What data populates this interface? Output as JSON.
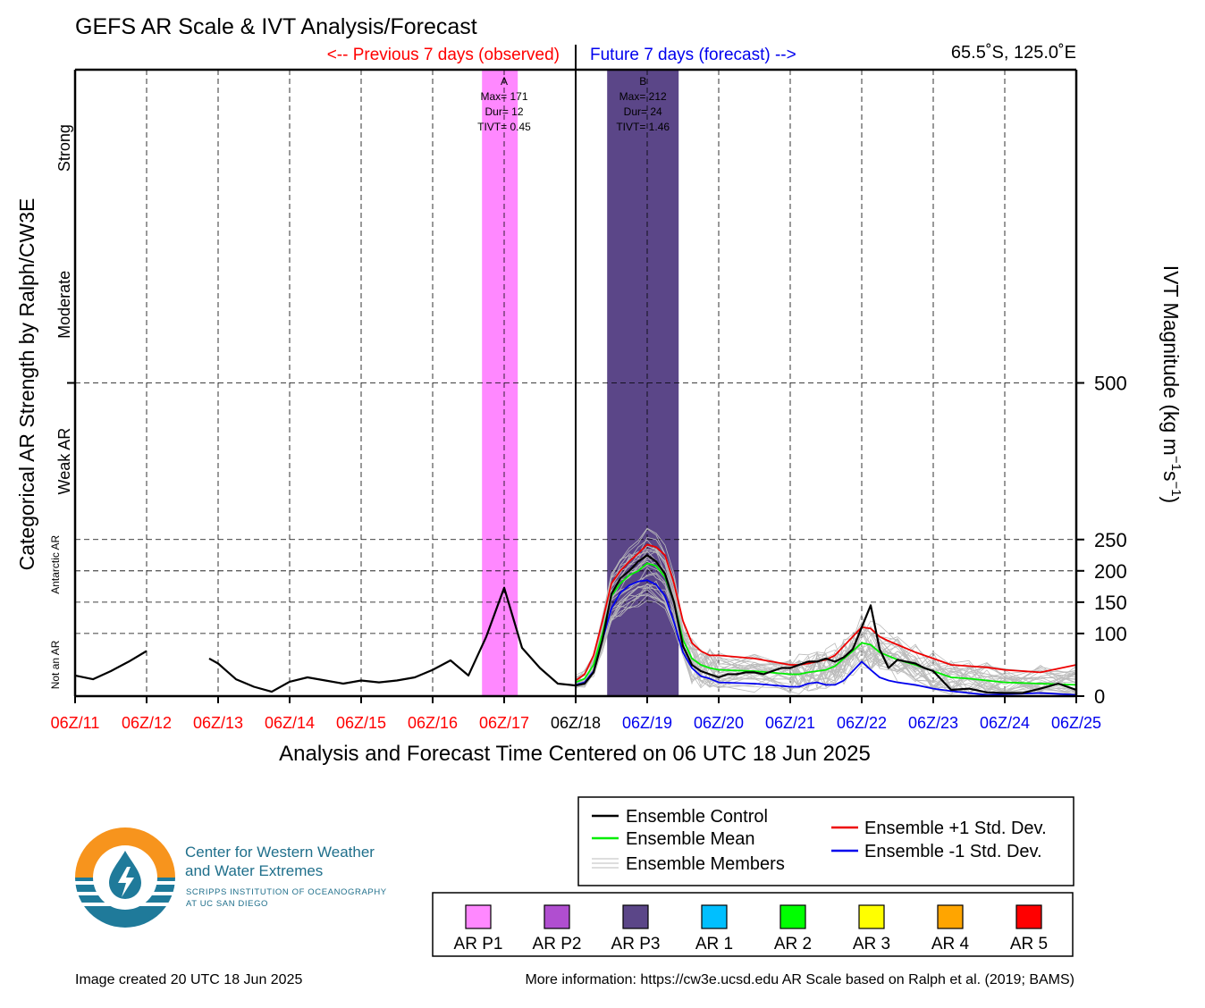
{
  "header": {
    "title": "GEFS AR Scale & IVT Analysis/Forecast",
    "previous_label": "<-- Previous 7 days (observed)",
    "future_label": "Future 7 days (forecast) -->",
    "location": "65.5˚S, 125.0˚E"
  },
  "colors": {
    "observed": "#ff0000",
    "forecast": "#0000ee",
    "control": "#000000",
    "mean": "#00ee00",
    "plus_std": "#ee0000",
    "minus_std": "#0000ee",
    "members": "#bbbbbb"
  },
  "chart_data": {
    "type": "line",
    "title": "GEFS AR Scale & IVT Analysis/Forecast",
    "xlabel": "Analysis and Forecast Time Centered on 06 UTC 18 Jun 2025",
    "ylabel_left": "Categorical AR Strength by Ralph/CW3E",
    "ylabel_right_main": "IVT Magnitude (kg m",
    "ylabel_right_sup1": "−1",
    "ylabel_right_mid": "s",
    "ylabel_right_sup2": "−1",
    "ylabel_right_end": ")",
    "x_unit": "days since 06Z/11",
    "xlim": [
      0,
      14
    ],
    "ylim": [
      0,
      1000
    ],
    "analysis_time_index": 7,
    "xticks": [
      {
        "label": "06Z/11",
        "kind": "observed"
      },
      {
        "label": "06Z/12",
        "kind": "observed"
      },
      {
        "label": "06Z/13",
        "kind": "observed"
      },
      {
        "label": "06Z/14",
        "kind": "observed"
      },
      {
        "label": "06Z/15",
        "kind": "observed"
      },
      {
        "label": "06Z/16",
        "kind": "observed"
      },
      {
        "label": "06Z/17",
        "kind": "observed"
      },
      {
        "label": "06Z/18",
        "kind": "analysis"
      },
      {
        "label": "06Z/19",
        "kind": "forecast"
      },
      {
        "label": "06Z/20",
        "kind": "forecast"
      },
      {
        "label": "06Z/21",
        "kind": "forecast"
      },
      {
        "label": "06Z/22",
        "kind": "forecast"
      },
      {
        "label": "06Z/23",
        "kind": "forecast"
      },
      {
        "label": "06Z/24",
        "kind": "forecast"
      },
      {
        "label": "06Z/25",
        "kind": "forecast"
      }
    ],
    "yticks_right": [
      {
        "value": 0,
        "label": "0"
      },
      {
        "value": 100,
        "label": "100"
      },
      {
        "value": 150,
        "label": "150"
      },
      {
        "value": 200,
        "label": "200"
      },
      {
        "value": 250,
        "label": "250"
      },
      {
        "value": 500,
        "label": "500"
      }
    ],
    "hgrid": [
      100,
      150,
      200,
      250,
      500
    ],
    "categories": [
      {
        "label": "Not an AR",
        "center": 50,
        "small": true
      },
      {
        "label": "Antarctic AR",
        "center": 210,
        "small": true
      },
      {
        "label": "Weak AR",
        "center": 375,
        "small": false
      },
      {
        "label": "Moderate",
        "center": 625,
        "small": false
      },
      {
        "label": "Strong",
        "center": 875,
        "small": false
      }
    ],
    "category_ticks": [
      500
    ],
    "ar_events": [
      {
        "id": "A",
        "max": "Max= 171",
        "dur": "Dur= 12",
        "tivt": "TIVT= 0.45",
        "start": 5.69,
        "end": 6.19,
        "center": 6.0,
        "color": "#ff88ff"
      },
      {
        "id": "B",
        "max": "Max= 212",
        "dur": "Dur= 24",
        "tivt": "TIVT= 1.46",
        "start": 7.44,
        "end": 8.44,
        "center": 7.94,
        "color": "#5b4688"
      }
    ],
    "series": [
      {
        "name": "Ensemble Control",
        "role": "control",
        "segments": [
          {
            "x": [
              0,
              0.25,
              0.5,
              0.75,
              1.0
            ],
            "y": [
              33,
              27,
              40,
              55,
              72
            ]
          },
          {
            "x": [
              1.875,
              2.0,
              2.25,
              2.5,
              2.75,
              3.0,
              3.25,
              3.5,
              3.75,
              4.0,
              4.25,
              4.5,
              4.75,
              5.0,
              5.25,
              5.5,
              5.75,
              6.0,
              6.25,
              6.5,
              6.75,
              7.0,
              7.125,
              7.25,
              7.375,
              7.5,
              7.625,
              7.75,
              7.875,
              8.0,
              8.125,
              8.25,
              8.375,
              8.5,
              8.625,
              8.75,
              8.875,
              9.0,
              9.125,
              9.25,
              9.375,
              9.5,
              9.625,
              9.75,
              9.875,
              10.0,
              10.125,
              10.25,
              10.375,
              10.5,
              10.625,
              10.75,
              10.875,
              11.0,
              11.125,
              11.25,
              11.375,
              11.5,
              11.625,
              11.75,
              11.875,
              12.0,
              12.25,
              12.5,
              12.75,
              13.0,
              13.25,
              13.5,
              13.75,
              14.0
            ],
            "y": [
              60,
              52,
              27,
              15,
              7,
              23,
              30,
              25,
              20,
              25,
              22,
              25,
              30,
              42,
              57,
              33,
              95,
              173,
              77,
              45,
              20,
              17,
              20,
              38,
              90,
              163,
              188,
              200,
              215,
              225,
              215,
              195,
              150,
              80,
              50,
              40,
              35,
              30,
              35,
              35,
              38,
              38,
              35,
              40,
              45,
              45,
              50,
              55,
              55,
              60,
              55,
              62,
              75,
              110,
              145,
              75,
              45,
              58,
              55,
              52,
              45,
              40,
              10,
              12,
              6,
              5,
              5,
              12,
              20,
              10
            ]
          }
        ]
      },
      {
        "name": "Ensemble Mean",
        "role": "mean",
        "segments": [
          {
            "x": [
              7.0,
              7.125,
              7.25,
              7.375,
              7.5,
              7.625,
              7.75,
              7.875,
              8.0,
              8.125,
              8.25,
              8.375,
              8.5,
              8.625,
              8.75,
              8.875,
              9.0,
              9.5,
              10.0,
              10.125,
              10.25,
              10.375,
              10.5,
              10.625,
              10.75,
              10.875,
              11.0,
              11.125,
              11.25,
              11.5,
              11.75,
              12.0,
              12.25,
              12.5,
              12.75,
              13.0,
              13.5,
              14.0
            ],
            "y": [
              22,
              28,
              50,
              100,
              160,
              180,
              193,
              200,
              212,
              208,
              190,
              150,
              90,
              60,
              50,
              45,
              42,
              40,
              35,
              35,
              38,
              40,
              42,
              48,
              60,
              72,
              85,
              82,
              70,
              58,
              50,
              40,
              30,
              28,
              25,
              22,
              20,
              18
            ]
          }
        ]
      },
      {
        "name": "Ensemble +1 Std. Dev.",
        "role": "plus_std",
        "segments": [
          {
            "x": [
              7.0,
              7.125,
              7.25,
              7.375,
              7.5,
              7.625,
              7.75,
              7.875,
              8.0,
              8.125,
              8.25,
              8.375,
              8.5,
              8.625,
              8.75,
              8.875,
              9.0,
              9.5,
              10.0,
              10.125,
              10.25,
              10.375,
              10.5,
              10.625,
              10.75,
              10.875,
              11.0,
              11.125,
              11.25,
              11.375,
              11.5,
              11.75,
              12.0,
              12.25,
              12.5,
              12.75,
              13.0,
              13.5,
              14.0
            ],
            "y": [
              25,
              35,
              65,
              120,
              180,
              200,
              215,
              228,
              242,
              238,
              225,
              180,
              120,
              85,
              72,
              65,
              65,
              60,
              50,
              50,
              52,
              55,
              58,
              65,
              80,
              95,
              110,
              108,
              95,
              88,
              82,
              70,
              60,
              50,
              48,
              46,
              42,
              38,
              50
            ]
          }
        ]
      },
      {
        "name": "Ensemble -1 Std. Dev.",
        "role": "minus_std",
        "segments": [
          {
            "x": [
              7.0,
              7.125,
              7.25,
              7.375,
              7.5,
              7.625,
              7.75,
              7.875,
              8.0,
              8.125,
              8.25,
              8.375,
              8.5,
              8.625,
              8.75,
              8.875,
              9.0,
              9.5,
              10.0,
              10.125,
              10.25,
              10.375,
              10.5,
              10.625,
              10.75,
              10.875,
              11.0,
              11.125,
              11.25,
              11.375,
              11.5,
              11.75,
              12.0,
              12.25,
              12.5,
              12.75,
              13.0,
              13.5,
              14.0
            ],
            "y": [
              18,
              22,
              40,
              90,
              140,
              165,
              177,
              183,
              185,
              178,
              160,
              118,
              70,
              45,
              32,
              28,
              22,
              20,
              15,
              15,
              20,
              22,
              18,
              18,
              25,
              40,
              55,
              42,
              30,
              25,
              22,
              18,
              12,
              8,
              5,
              2,
              3,
              5,
              2
            ]
          }
        ]
      }
    ]
  },
  "legend": {
    "control": "Ensemble Control",
    "mean": "Ensemble Mean",
    "members": "Ensemble Members",
    "plus_std": "Ensemble +1 Std. Dev.",
    "minus_std": "Ensemble -1 Std. Dev."
  },
  "ar_scale_legend": [
    {
      "label": "AR P1",
      "color": "#ff88ff"
    },
    {
      "label": "AR P2",
      "color": "#b04ed0"
    },
    {
      "label": "AR P3",
      "color": "#5b4688"
    },
    {
      "label": "AR 1",
      "color": "#00bfff"
    },
    {
      "label": "AR 2",
      "color": "#00ff00"
    },
    {
      "label": "AR 3",
      "color": "#ffff00"
    },
    {
      "label": "AR 4",
      "color": "#ffa500"
    },
    {
      "label": "AR 5",
      "color": "#ff0000"
    }
  ],
  "logo": {
    "line1": "Center for Western Weather",
    "line2": "and Water Extremes",
    "line3": "SCRIPPS INSTITUTION OF OCEANOGRAPHY",
    "line4": "AT UC SAN DIEGO",
    "orange": "#f7941d",
    "teal": "#1f7a9a"
  },
  "footer": {
    "created": "Image created 20 UTC 18 Jun 2025",
    "info": "More information: https://cw3e.ucsd.edu AR Scale based on Ralph et al. (2019; BAMS)"
  }
}
